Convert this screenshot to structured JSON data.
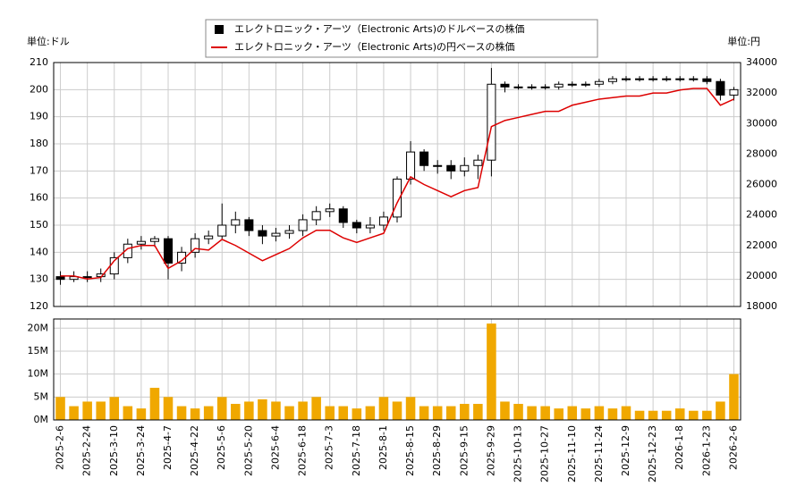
{
  "chart_data": [
    {
      "type": "candlestick",
      "y_unit_label": "単位:ドル",
      "y2_unit_label": "単位:円",
      "ylim": [
        120,
        210
      ],
      "yticks": [
        120,
        130,
        140,
        150,
        160,
        170,
        180,
        190,
        200,
        210
      ],
      "y2lim": [
        18000,
        34000
      ],
      "y2ticks": [
        18000,
        20000,
        22000,
        24000,
        26000,
        28000,
        30000,
        32000,
        34000
      ],
      "grid": true,
      "legend": "top",
      "series": [
        {
          "name": "エレクトロニック・アーツ（Electronic Arts)のドルベースの株価",
          "color": "#000000",
          "open": [
            131,
            130,
            131,
            131,
            132,
            138,
            143,
            144,
            145,
            136,
            140,
            145,
            146,
            150,
            152,
            148,
            146,
            147,
            148,
            152,
            155,
            156,
            151,
            149,
            150,
            153,
            167,
            177,
            172,
            172,
            170,
            172,
            174,
            202,
            201,
            201,
            201,
            201,
            202,
            202,
            202,
            203,
            204,
            204,
            204,
            204,
            204,
            204,
            204,
            203,
            198
          ],
          "high": [
            133,
            133,
            133,
            134,
            140,
            145,
            146,
            146,
            146,
            142,
            147,
            148,
            158,
            155,
            153,
            150,
            149,
            150,
            154,
            157,
            158,
            157,
            152,
            153,
            155,
            168,
            181,
            178,
            174,
            174,
            175,
            176,
            208,
            203,
            202,
            202,
            202,
            203,
            203,
            203,
            204,
            205,
            205,
            205,
            205,
            205,
            205,
            205,
            205,
            204,
            201
          ],
          "low": [
            128,
            129,
            129,
            129,
            130,
            136,
            141,
            142,
            130,
            133,
            138,
            143,
            145,
            147,
            146,
            143,
            144,
            145,
            146,
            150,
            153,
            149,
            147,
            147,
            148,
            151,
            165,
            170,
            169,
            167,
            168,
            167,
            168,
            199,
            200,
            200,
            200,
            200,
            201,
            201,
            201,
            202,
            203,
            203,
            203,
            203,
            203,
            203,
            202,
            196,
            196
          ],
          "close": [
            130,
            131,
            131,
            132,
            138,
            143,
            144,
            145,
            136,
            140,
            145,
            146,
            150,
            152,
            148,
            146,
            147,
            148,
            152,
            155,
            156,
            151,
            149,
            150,
            153,
            167,
            177,
            172,
            172,
            170,
            172,
            174,
            202,
            201,
            201,
            201,
            201,
            202,
            202,
            202,
            203,
            204,
            204,
            204,
            204,
            204,
            204,
            204,
            203,
            198,
            200
          ]
        },
        {
          "name": "エレクトロニック・アーツ（Electronic Arts)の円ベースの株価",
          "color": "#dd0000",
          "axis": "y2",
          "values": [
            20000,
            20000,
            19800,
            19900,
            21000,
            21800,
            22000,
            22000,
            20500,
            21000,
            21800,
            21700,
            22400,
            22000,
            21500,
            21000,
            21400,
            21800,
            22500,
            23000,
            23000,
            22500,
            22200,
            22500,
            22800,
            24800,
            26500,
            26000,
            25600,
            25200,
            25600,
            25800,
            29800,
            30200,
            30400,
            30600,
            30800,
            30800,
            31200,
            31400,
            31600,
            31700,
            31800,
            31800,
            32000,
            32000,
            32200,
            32300,
            32300,
            31200,
            31600
          ]
        }
      ]
    },
    {
      "type": "bar",
      "color": "#f0a800",
      "categories": [
        "2025-2-6",
        null,
        "2025-2-24",
        null,
        "2025-3-10",
        null,
        "2025-3-24",
        null,
        "2025-4-7",
        null,
        "2025-4-22",
        null,
        "2025-5-6",
        null,
        "2025-5-20",
        null,
        "2025-6-4",
        null,
        "2025-6-18",
        null,
        "2025-7-3",
        null,
        "2025-7-18",
        null,
        "2025-8-1",
        null,
        "2025-8-15",
        null,
        "2025-8-29",
        null,
        "2025-9-15",
        null,
        "2025-9-29",
        null,
        "2025-10-13",
        null,
        "2025-10-27",
        null,
        "2025-11-10",
        null,
        "2025-11-24",
        null,
        "2025-12-9",
        null,
        "2025-12-23",
        null,
        "2026-1-8",
        null,
        "2026-1-23",
        null,
        "2026-2-6"
      ],
      "values": [
        5,
        3,
        4,
        4,
        5,
        3,
        2.5,
        7,
        5,
        3,
        2.5,
        3,
        5,
        3.5,
        4,
        4.5,
        4,
        3,
        4,
        5,
        3,
        3,
        2.5,
        3,
        5,
        4,
        5,
        3,
        3,
        3,
        3.5,
        3.5,
        21,
        4,
        3.5,
        3,
        3,
        2.5,
        3,
        2.5,
        3,
        2.5,
        3,
        2,
        2,
        2,
        2.5,
        2,
        2,
        4,
        10
      ],
      "ylim": [
        0,
        22
      ],
      "yticks": [
        {
          "value": 0,
          "label": "0M"
        },
        {
          "value": 5,
          "label": "5M"
        },
        {
          "value": 10,
          "label": "10M"
        },
        {
          "value": 15,
          "label": "15M"
        },
        {
          "value": 20,
          "label": "20M"
        }
      ],
      "grid": true
    }
  ]
}
